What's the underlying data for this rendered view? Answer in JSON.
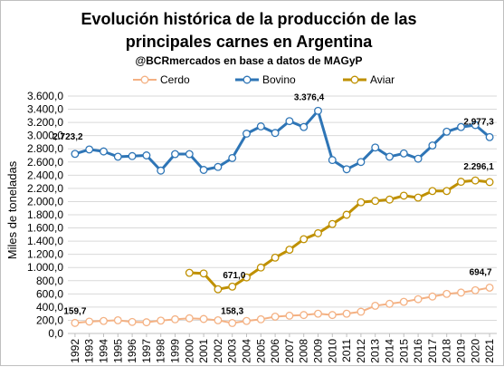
{
  "colors": {
    "cerdo": "#f4b183",
    "bovino": "#2e75b6",
    "aviar": "#bf9000",
    "grid": "#d9d9d9"
  },
  "chart_data": {
    "type": "line",
    "title_line1": "Evolución histórica de la producción de las",
    "title_line2": "principales carnes en Argentina",
    "subtitle": "@BCRmercados en base a datos de MAGyP",
    "xlabel": "",
    "ylabel": "Miles de toneladas",
    "ylim": [
      0,
      3600
    ],
    "yticks": [
      "0,0",
      "200,0",
      "400,0",
      "600,0",
      "800,0",
      "1.000,0",
      "1.200,0",
      "1.400,0",
      "1.600,0",
      "1.800,0",
      "2.000,0",
      "2.200,0",
      "2.400,0",
      "2.600,0",
      "2.800,0",
      "3.000,0",
      "3.200,0",
      "3.400,0",
      "3.600,0"
    ],
    "grid": true,
    "legend_position": "top",
    "x": [
      "1992",
      "1993",
      "1994",
      "1995",
      "1996",
      "1997",
      "1998",
      "1999",
      "2000",
      "2001",
      "2002",
      "2003",
      "2004",
      "2005",
      "2006",
      "2007",
      "2008",
      "2009",
      "2010",
      "2011",
      "2012",
      "2013",
      "2014",
      "2015",
      "2016",
      "2017",
      "2018",
      "2019",
      "2020",
      "2021"
    ],
    "series": [
      {
        "name": "Cerdo",
        "color": "#f4b183",
        "values": [
          159.7,
          180,
          190,
          200,
          175,
          170,
          195,
          215,
          230,
          220,
          200,
          158.3,
          190,
          215,
          255,
          270,
          280,
          300,
          280,
          300,
          330,
          420,
          450,
          480,
          520,
          560,
          600,
          620,
          655,
          694.7
        ]
      },
      {
        "name": "Bovino",
        "color": "#2e75b6",
        "values": [
          2723.2,
          2790,
          2760,
          2680,
          2690,
          2700,
          2470,
          2720,
          2720,
          2480,
          2525,
          2660,
          3030,
          3140,
          3040,
          3220,
          3130,
          3376.4,
          2630,
          2490,
          2600,
          2820,
          2680,
          2730,
          2650,
          2850,
          3060,
          3130,
          3160,
          2977.3
        ]
      },
      {
        "name": "Aviar",
        "color": "#bf9000",
        "values": [
          null,
          null,
          null,
          null,
          null,
          null,
          null,
          null,
          920,
          910,
          671.0,
          710,
          850,
          1000,
          1150,
          1270,
          1430,
          1520,
          1660,
          1800,
          1990,
          2010,
          2030,
          2090,
          2060,
          2160,
          2160,
          2300,
          2320,
          2296.1
        ]
      }
    ],
    "annotations": [
      {
        "series": 0,
        "index": 0,
        "label": "159,7"
      },
      {
        "series": 0,
        "index": 11,
        "label": "158,3"
      },
      {
        "series": 0,
        "index": 29,
        "label": "694,7"
      },
      {
        "series": 1,
        "index": 0,
        "label": "2.723,2"
      },
      {
        "series": 1,
        "index": 17,
        "label": "3.376,4"
      },
      {
        "series": 1,
        "index": 29,
        "label": "2.977,3"
      },
      {
        "series": 2,
        "index": 10,
        "label": "671,0"
      },
      {
        "series": 2,
        "index": 29,
        "label": "2.296,1"
      }
    ]
  }
}
